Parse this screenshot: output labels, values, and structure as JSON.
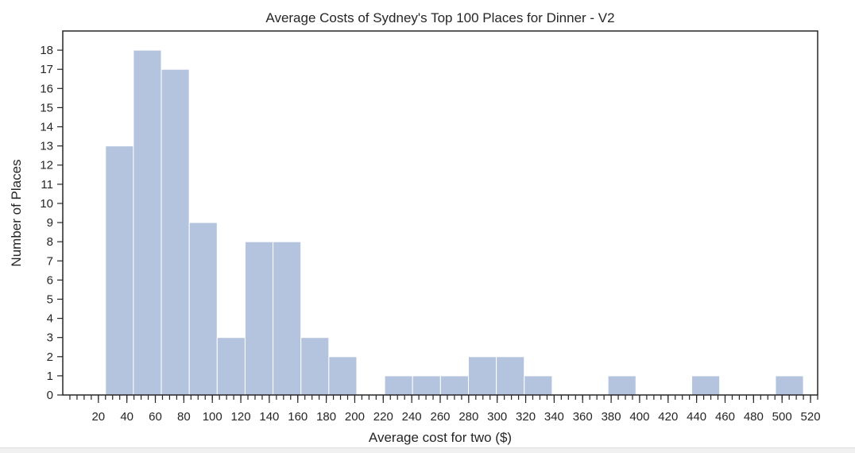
{
  "chart_data": {
    "type": "bar",
    "title": "Average Costs of Sydney's Top 100 Places for Dinner - V2",
    "xlabel": "Average cost for two ($)",
    "ylabel": "Number of Places",
    "xlim": [
      -5,
      525
    ],
    "ylim": [
      0,
      19
    ],
    "grid": false,
    "bin_width": 19.6,
    "bins": [
      {
        "start": 25.0,
        "count": 13
      },
      {
        "start": 44.6,
        "count": 18
      },
      {
        "start": 64.2,
        "count": 17
      },
      {
        "start": 83.8,
        "count": 9
      },
      {
        "start": 103.4,
        "count": 3
      },
      {
        "start": 123.0,
        "count": 8
      },
      {
        "start": 142.6,
        "count": 8
      },
      {
        "start": 162.2,
        "count": 3
      },
      {
        "start": 181.8,
        "count": 2
      },
      {
        "start": 201.4,
        "count": 0
      },
      {
        "start": 221.0,
        "count": 1
      },
      {
        "start": 240.6,
        "count": 1
      },
      {
        "start": 260.2,
        "count": 1
      },
      {
        "start": 279.8,
        "count": 2
      },
      {
        "start": 299.4,
        "count": 2
      },
      {
        "start": 319.0,
        "count": 1
      },
      {
        "start": 338.6,
        "count": 0
      },
      {
        "start": 358.2,
        "count": 0
      },
      {
        "start": 377.8,
        "count": 1
      },
      {
        "start": 397.4,
        "count": 0
      },
      {
        "start": 417.0,
        "count": 0
      },
      {
        "start": 436.6,
        "count": 1
      },
      {
        "start": 456.2,
        "count": 0
      },
      {
        "start": 475.8,
        "count": 0
      },
      {
        "start": 495.4,
        "count": 1
      }
    ],
    "x_major_ticks": [
      "20",
      "40",
      "60",
      "80",
      "100",
      "120",
      "140",
      "160",
      "180",
      "200",
      "220",
      "240",
      "260",
      "280",
      "300",
      "320",
      "340",
      "360",
      "380",
      "400",
      "420",
      "440",
      "460",
      "480",
      "500",
      "520"
    ],
    "x_minor_step": 5,
    "y_ticks": [
      "0",
      "1",
      "2",
      "3",
      "4",
      "5",
      "6",
      "7",
      "8",
      "9",
      "10",
      "11",
      "12",
      "13",
      "14",
      "15",
      "16",
      "17",
      "18"
    ],
    "colors": {
      "bar": "#b4c4de",
      "bar_edge": "#ffffff",
      "axis": "#262626"
    }
  }
}
